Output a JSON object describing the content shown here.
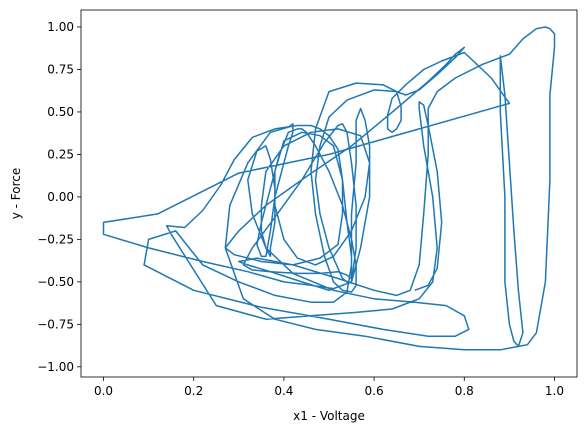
{
  "chart_data": {
    "type": "line",
    "xlabel": "x1 - Voltage",
    "ylabel": "y - Force",
    "xlim": [
      -0.05,
      1.05
    ],
    "ylim": [
      -1.06,
      1.1
    ],
    "xticks": [
      "0.0",
      "0.2",
      "0.4",
      "0.6",
      "0.8",
      "1.0"
    ],
    "yticks": [
      "−1.00",
      "−0.75",
      "−0.50",
      "−0.25",
      "0.00",
      "0.25",
      "0.50",
      "0.75",
      "1.00"
    ],
    "grid": false,
    "series": [
      {
        "color": "#1f77b4",
        "x": [
          0.69,
          0.72,
          0.74,
          0.75,
          0.74,
          0.72,
          0.71,
          0.7,
          0.7,
          0.71,
          0.73,
          0.74,
          0.73,
          0.7,
          0.64,
          0.56,
          0.46,
          0.36,
          0.25,
          0.15,
          0.14,
          0.18,
          0.22,
          0.26,
          0.29,
          0.33,
          0.38,
          0.43,
          0.46,
          0.48,
          0.5,
          0.52,
          0.53,
          0.53,
          0.52,
          0.48,
          0.42,
          0.35,
          0.29,
          0.27,
          0.3,
          0.36,
          0.45,
          0.55,
          0.65,
          0.72,
          0.76,
          0.78,
          0.79,
          0.8,
          0.78,
          0.74,
          0.7,
          0.67,
          0.65,
          0.6,
          0.54,
          0.5,
          0.48,
          0.47,
          0.48,
          0.5,
          0.52,
          0.53,
          0.54,
          0.54,
          0.55,
          0.55,
          0.54,
          0.52,
          0.48,
          0.43,
          0.37,
          0.33,
          0.31,
          0.33,
          0.38,
          0.44,
          0.49,
          0.52,
          0.53,
          0.54,
          0.55,
          0.56,
          0.56,
          0.55,
          0.5,
          0.44,
          0.37,
          0.32,
          0.3,
          0.34,
          0.42,
          0.52,
          0.6,
          0.65,
          0.68,
          0.7,
          0.71,
          0.72,
          0.72,
          0.74,
          0.78,
          0.84,
          0.9,
          0.93,
          0.96,
          0.98,
          0.99,
          1.0,
          1.0,
          0.99,
          0.99,
          0.98,
          0.96,
          0.94,
          0.92,
          0.91,
          0.9,
          0.89,
          0.89,
          0.88,
          0.88,
          0.88,
          0.89,
          0.9,
          0.91,
          0.92,
          0.93,
          0.92,
          0.88,
          0.8,
          0.7,
          0.58,
          0.47,
          0.38,
          0.31,
          0.27,
          0.28,
          0.32,
          0.37,
          0.41,
          0.42,
          0.42,
          0.41,
          0.4,
          0.38,
          0.37,
          0.36,
          0.35,
          0.34,
          0.35,
          0.37,
          0.39,
          0.41,
          0.43,
          0.44,
          0.45,
          0.47,
          0.5,
          0.53,
          0.55,
          0.56,
          0.56,
          0.55,
          0.53,
          0.51,
          0.49,
          0.47,
          0.46,
          0.47,
          0.5,
          0.56,
          0.62,
          0.65,
          0.66,
          0.66,
          0.65,
          0.64,
          0.63,
          0.63,
          0.64,
          0.67,
          0.71,
          0.75,
          0.8,
          0.86,
          0.9,
          0.7,
          0.5,
          0.3,
          0.12,
          0.0,
          0.0,
          0.1,
          0.22,
          0.32,
          0.4,
          0.46,
          0.51,
          0.55,
          0.57,
          0.59,
          0.59,
          0.58,
          0.57,
          0.56,
          0.56,
          0.55,
          0.55,
          0.54,
          0.51,
          0.46,
          0.38,
          0.3,
          0.22,
          0.16,
          0.1,
          0.09,
          0.2,
          0.35,
          0.5,
          0.62,
          0.72,
          0.78,
          0.81,
          0.8,
          0.76,
          0.69,
          0.6,
          0.51,
          0.42,
          0.36,
          0.33,
          0.32,
          0.34,
          0.36,
          0.37,
          0.38,
          0.38,
          0.37,
          0.37,
          0.36,
          0.35,
          0.35,
          0.36,
          0.4,
          0.46,
          0.52,
          0.57,
          0.59,
          0.58,
          0.55,
          0.51,
          0.47,
          0.43,
          0.4,
          0.38,
          0.38,
          0.4,
          0.44,
          0.48,
          0.51,
          0.53,
          0.54,
          0.55,
          0.55,
          0.55
        ],
        "y": [
          -0.55,
          -0.52,
          -0.42,
          -0.15,
          0.15,
          0.42,
          0.54,
          0.56,
          0.52,
          0.3,
          0.0,
          -0.3,
          -0.5,
          -0.6,
          -0.66,
          -0.68,
          -0.7,
          -0.72,
          -0.64,
          -0.22,
          -0.17,
          -0.18,
          -0.08,
          0.07,
          0.22,
          0.35,
          0.4,
          0.42,
          0.42,
          0.4,
          0.36,
          0.28,
          0.1,
          -0.1,
          -0.28,
          -0.36,
          -0.4,
          -0.38,
          -0.34,
          -0.3,
          -0.2,
          -0.05,
          0.12,
          0.3,
          0.52,
          0.68,
          0.78,
          0.84,
          0.86,
          0.88,
          0.82,
          0.72,
          0.63,
          0.6,
          0.62,
          0.63,
          0.57,
          0.47,
          0.3,
          0.1,
          -0.1,
          -0.3,
          -0.42,
          -0.48,
          -0.5,
          -0.51,
          -0.5,
          -0.48,
          -0.46,
          -0.44,
          -0.45,
          -0.45,
          -0.44,
          -0.43,
          -0.4,
          -0.3,
          -0.12,
          0.1,
          0.32,
          0.42,
          0.43,
          0.38,
          0.2,
          -0.05,
          -0.3,
          -0.5,
          -0.55,
          -0.5,
          -0.44,
          -0.4,
          -0.38,
          -0.36,
          -0.4,
          -0.48,
          -0.55,
          -0.58,
          -0.55,
          -0.4,
          -0.1,
          0.25,
          0.52,
          0.62,
          0.7,
          0.78,
          0.84,
          0.93,
          0.99,
          1.0,
          0.99,
          0.96,
          0.88,
          0.6,
          0.1,
          -0.5,
          -0.8,
          -0.87,
          -0.88,
          -0.85,
          -0.75,
          -0.5,
          0.0,
          0.5,
          0.75,
          0.83,
          0.6,
          0.2,
          -0.2,
          -0.55,
          -0.8,
          -0.88,
          -0.9,
          -0.9,
          -0.88,
          -0.82,
          -0.78,
          -0.72,
          -0.6,
          -0.3,
          -0.05,
          0.2,
          0.38,
          0.41,
          0.43,
          0.38,
          0.3,
          0.2,
          0.0,
          -0.2,
          -0.35,
          -0.35,
          -0.28,
          -0.15,
          0.05,
          0.25,
          0.38,
          0.4,
          0.4,
          0.38,
          0.3,
          0.15,
          -0.05,
          -0.25,
          -0.4,
          -0.52,
          -0.56,
          -0.55,
          -0.5,
          -0.35,
          -0.1,
          0.15,
          0.4,
          0.62,
          0.67,
          0.66,
          0.62,
          0.53,
          0.45,
          0.4,
          0.38,
          0.4,
          0.48,
          0.58,
          0.66,
          0.75,
          0.8,
          0.85,
          0.7,
          0.55,
          0.4,
          0.25,
          0.14,
          -0.1,
          -0.15,
          -0.22,
          -0.3,
          -0.38,
          -0.44,
          -0.5,
          -0.52,
          -0.54,
          -0.5,
          -0.3,
          0.0,
          0.3,
          0.45,
          0.52,
          0.45,
          0.2,
          -0.1,
          -0.4,
          -0.56,
          -0.62,
          -0.62,
          -0.58,
          -0.5,
          -0.4,
          -0.2,
          -0.25,
          -0.4,
          -0.55,
          -0.65,
          -0.72,
          -0.78,
          -0.82,
          -0.82,
          -0.78,
          -0.7,
          -0.64,
          -0.62,
          -0.6,
          -0.55,
          -0.45,
          -0.3,
          -0.1,
          0.1,
          0.27,
          0.3,
          0.22,
          0.05,
          -0.15,
          -0.3,
          -0.35,
          -0.3,
          -0.2,
          -0.05,
          0.15,
          0.3,
          0.38,
          0.4,
          0.36,
          0.2,
          0.0,
          -0.2,
          -0.35,
          -0.4,
          -0.36,
          -0.25,
          -0.05,
          0.15,
          0.33,
          0.38,
          0.36,
          0.3,
          0.1,
          -0.15,
          -0.35,
          -0.45,
          -0.5
        ]
      }
    ]
  }
}
